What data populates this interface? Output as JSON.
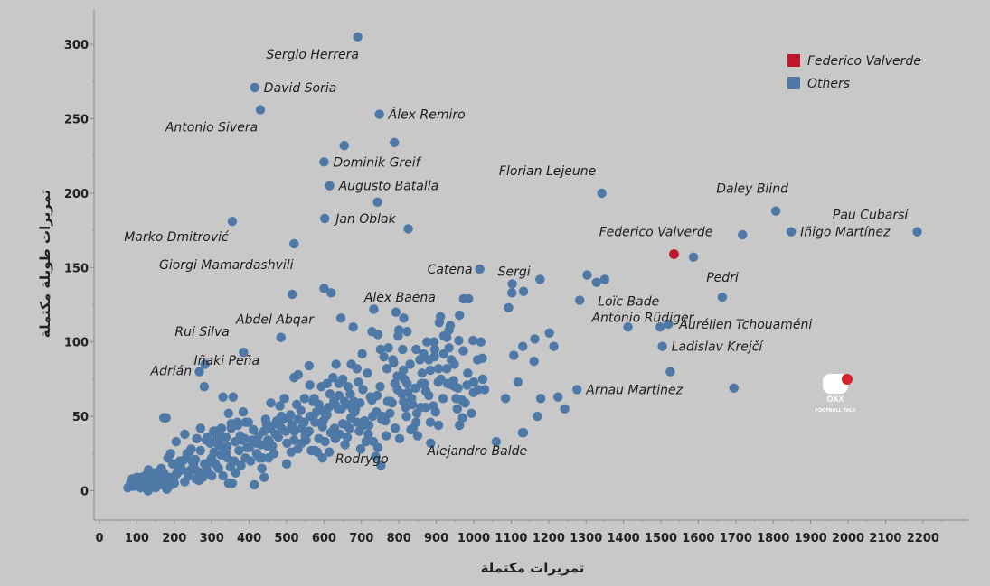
{
  "chart_data": {
    "type": "scatter",
    "xlabel": "تمريرات مكتملة",
    "ylabel": "تمريرات طويلة مكتملة",
    "xlim": [
      0,
      2300
    ],
    "ylim": [
      -20,
      325
    ],
    "xticks": [
      0,
      100,
      200,
      300,
      400,
      500,
      600,
      700,
      800,
      900,
      1000,
      1100,
      1200,
      1300,
      1400,
      1500,
      1600,
      1700,
      1800,
      1900,
      2000,
      2100,
      2200
    ],
    "yticks": [
      0,
      50,
      100,
      150,
      200,
      250,
      300
    ],
    "grid": false,
    "legend_position": "top-right",
    "legend": [
      {
        "name": "Federico Valverde",
        "color": "#c0172d"
      },
      {
        "name": "Others",
        "color": "#4e79a7"
      }
    ],
    "colors": {
      "highlight": "#c0172d",
      "others": "#4e79a7"
    },
    "highlight": [
      {
        "name": "Federico Valverde",
        "x": 1535,
        "y": 159
      }
    ],
    "labeled_points": [
      {
        "name": "Sergio Herrera",
        "x": 690,
        "y": 305
      },
      {
        "name": "David Soria",
        "x": 415,
        "y": 271
      },
      {
        "name": "Antonio Sivera",
        "x": 430,
        "y": 256
      },
      {
        "name": "Álex Remiro",
        "x": 748,
        "y": 253
      },
      {
        "name": "Dominik Greif",
        "x": 600,
        "y": 221
      },
      {
        "name": "Augusto Batalla",
        "x": 615,
        "y": 205
      },
      {
        "name": "Jan Oblak",
        "x": 602,
        "y": 183
      },
      {
        "name": "Marko Dmitrović",
        "x": 355,
        "y": 181
      },
      {
        "name": "Giorgi Mamardashvili",
        "x": 520,
        "y": 166
      },
      {
        "name": "Florian Lejeune",
        "x": 1342,
        "y": 200
      },
      {
        "name": "Daley Blind",
        "x": 1807,
        "y": 188
      },
      {
        "name": "Pau Cubarsí",
        "x": 2185,
        "y": 174
      },
      {
        "name": "Iñigo Martínez",
        "x": 1848,
        "y": 174
      },
      {
        "name": "Pedri",
        "x": 1587,
        "y": 157
      },
      {
        "name": "Antonio Rüdiger",
        "x": 1664,
        "y": 130
      },
      {
        "name": "Catena",
        "x": 1016,
        "y": 149
      },
      {
        "name": "Sergi",
        "x": 1103,
        "y": 139
      },
      {
        "name": "Loïc Bade",
        "x": 1283,
        "y": 128
      },
      {
        "name": "Alex Baena",
        "x": 973,
        "y": 129
      },
      {
        "name": "Abdel Abqar",
        "x": 645,
        "y": 116
      },
      {
        "name": "Aurélien Tchouaméni",
        "x": 1520,
        "y": 112
      },
      {
        "name": "Ladislav Krejčí",
        "x": 1504,
        "y": 97
      },
      {
        "name": "Rui Silva",
        "x": 385,
        "y": 93
      },
      {
        "name": "Iñaki Peña",
        "x": 485,
        "y": 103
      },
      {
        "name": "Adrián",
        "x": 267,
        "y": 80
      },
      {
        "name": "Arnau Martinez",
        "x": 1276,
        "y": 68
      },
      {
        "name": "Alejandro Balde",
        "x": 1130,
        "y": 39
      },
      {
        "name": "Rodrygo",
        "x": 885,
        "y": 32
      }
    ],
    "others": [
      [
        654,
        232
      ],
      [
        788,
        234
      ],
      [
        743,
        194
      ],
      [
        825,
        176
      ],
      [
        515,
        132
      ],
      [
        600,
        136
      ],
      [
        619,
        133
      ],
      [
        986,
        129
      ],
      [
        1102,
        133
      ],
      [
        1133,
        134
      ],
      [
        1177,
        142
      ],
      [
        1303,
        145
      ],
      [
        1328,
        140
      ],
      [
        1350,
        142
      ],
      [
        1412,
        110
      ],
      [
        1498,
        110
      ],
      [
        1525,
        80
      ],
      [
        1695,
        69
      ],
      [
        1718,
        172
      ],
      [
        733,
        122
      ],
      [
        678,
        110
      ],
      [
        792,
        120
      ],
      [
        813,
        116
      ],
      [
        911,
        117
      ],
      [
        937,
        111
      ],
      [
        962,
        118
      ],
      [
        1093,
        123
      ],
      [
        1019,
        100
      ],
      [
        1023,
        89
      ],
      [
        1131,
        97
      ],
      [
        1163,
        102
      ],
      [
        1202,
        106
      ],
      [
        1214,
        97
      ],
      [
        1107,
        91
      ],
      [
        1161,
        87
      ],
      [
        1179,
        62
      ],
      [
        1225,
        63
      ],
      [
        1243,
        55
      ],
      [
        1170,
        50
      ],
      [
        1133,
        39
      ],
      [
        1085,
        62
      ],
      [
        1118,
        73
      ],
      [
        1000,
        73
      ],
      [
        1024,
        75
      ],
      [
        1029,
        68
      ],
      [
        999,
        66
      ],
      [
        977,
        59
      ],
      [
        953,
        62
      ],
      [
        930,
        72
      ],
      [
        905,
        73
      ],
      [
        895,
        90
      ],
      [
        875,
        100
      ],
      [
        866,
        92
      ],
      [
        846,
        95
      ],
      [
        822,
        107
      ],
      [
        810,
        95
      ],
      [
        798,
        104
      ],
      [
        830,
        85
      ],
      [
        815,
        75
      ],
      [
        789,
        72
      ],
      [
        768,
        82
      ],
      [
        751,
        95
      ],
      [
        744,
        105
      ],
      [
        728,
        107
      ],
      [
        702,
        92
      ],
      [
        688,
        82
      ],
      [
        673,
        85
      ],
      [
        664,
        70
      ],
      [
        655,
        60
      ],
      [
        640,
        72
      ],
      [
        626,
        60
      ],
      [
        612,
        56
      ],
      [
        608,
        72
      ],
      [
        593,
        70
      ],
      [
        580,
        53
      ],
      [
        571,
        60
      ],
      [
        563,
        50
      ],
      [
        560,
        40
      ],
      [
        550,
        37
      ],
      [
        540,
        32
      ],
      [
        531,
        48
      ],
      [
        521,
        40
      ],
      [
        510,
        51
      ],
      [
        498,
        40
      ],
      [
        486,
        50
      ],
      [
        470,
        45
      ],
      [
        458,
        42
      ],
      [
        449,
        30
      ],
      [
        436,
        22
      ],
      [
        425,
        37
      ],
      [
        411,
        41
      ],
      [
        401,
        29
      ],
      [
        388,
        35
      ],
      [
        373,
        27
      ],
      [
        360,
        20
      ],
      [
        352,
        42
      ],
      [
        341,
        30
      ],
      [
        325,
        24
      ],
      [
        312,
        40
      ],
      [
        300,
        22
      ],
      [
        292,
        12
      ],
      [
        281,
        18
      ],
      [
        270,
        27
      ],
      [
        258,
        8
      ],
      [
        247,
        20
      ],
      [
        232,
        22
      ],
      [
        220,
        14
      ],
      [
        205,
        11
      ],
      [
        196,
        18
      ],
      [
        183,
        22
      ],
      [
        175,
        10
      ],
      [
        165,
        15
      ],
      [
        158,
        7
      ],
      [
        148,
        12
      ],
      [
        138,
        8
      ],
      [
        126,
        11
      ],
      [
        115,
        5
      ],
      [
        104,
        6
      ],
      [
        92,
        3
      ],
      [
        83,
        5
      ],
      [
        76,
        2
      ],
      [
        88,
        8
      ],
      [
        99,
        4
      ],
      [
        112,
        9
      ],
      [
        122,
        3
      ],
      [
        131,
        14
      ],
      [
        142,
        5
      ],
      [
        152,
        10
      ],
      [
        162,
        4
      ],
      [
        172,
        12
      ],
      [
        186,
        3
      ],
      [
        198,
        8
      ],
      [
        208,
        12
      ],
      [
        218,
        15
      ],
      [
        228,
        6
      ],
      [
        238,
        10
      ],
      [
        252,
        17
      ],
      [
        262,
        13
      ],
      [
        276,
        9
      ],
      [
        286,
        16
      ],
      [
        296,
        20
      ],
      [
        306,
        26
      ],
      [
        318,
        31
      ],
      [
        330,
        36
      ],
      [
        338,
        26
      ],
      [
        350,
        16
      ],
      [
        363,
        33
      ],
      [
        376,
        37
      ],
      [
        391,
        46
      ],
      [
        404,
        20
      ],
      [
        420,
        25
      ],
      [
        432,
        31
      ],
      [
        444,
        48
      ],
      [
        454,
        33
      ],
      [
        466,
        25
      ],
      [
        478,
        36
      ],
      [
        490,
        48
      ],
      [
        501,
        32
      ],
      [
        514,
        44
      ],
      [
        527,
        58
      ],
      [
        538,
        54
      ],
      [
        547,
        46
      ],
      [
        556,
        39
      ],
      [
        566,
        27
      ],
      [
        576,
        46
      ],
      [
        586,
        35
      ],
      [
        596,
        43
      ],
      [
        604,
        50
      ],
      [
        616,
        65
      ],
      [
        624,
        76
      ],
      [
        632,
        85
      ],
      [
        646,
        55
      ],
      [
        660,
        44
      ],
      [
        672,
        49
      ],
      [
        684,
        55
      ],
      [
        696,
        59
      ],
      [
        708,
        47
      ],
      [
        720,
        44
      ],
      [
        732,
        33
      ],
      [
        744,
        29
      ],
      [
        756,
        50
      ],
      [
        770,
        60
      ],
      [
        782,
        59
      ],
      [
        796,
        68
      ],
      [
        806,
        77
      ],
      [
        818,
        56
      ],
      [
        834,
        62
      ],
      [
        846,
        46
      ],
      [
        858,
        56
      ],
      [
        872,
        56
      ],
      [
        884,
        46
      ],
      [
        898,
        53
      ],
      [
        912,
        75
      ],
      [
        928,
        82
      ],
      [
        942,
        71
      ],
      [
        956,
        55
      ],
      [
        968,
        61
      ],
      [
        982,
        71
      ],
      [
        994,
        52
      ],
      [
        1010,
        88
      ],
      [
        1060,
        33
      ],
      [
        270,
        42
      ],
      [
        282,
        85
      ],
      [
        330,
        63
      ],
      [
        345,
        52
      ],
      [
        357,
        63
      ],
      [
        370,
        44
      ],
      [
        384,
        53
      ],
      [
        398,
        46
      ],
      [
        280,
        70
      ],
      [
        305,
        40
      ],
      [
        318,
        15
      ],
      [
        330,
        10
      ],
      [
        345,
        5
      ],
      [
        228,
        38
      ],
      [
        245,
        28
      ],
      [
        190,
        25
      ],
      [
        178,
        49
      ],
      [
        172,
        49
      ],
      [
        205,
        33
      ],
      [
        215,
        20
      ],
      [
        260,
        35
      ],
      [
        240,
        26
      ],
      [
        285,
        34
      ],
      [
        296,
        32
      ],
      [
        310,
        18
      ],
      [
        325,
        30
      ],
      [
        342,
        22
      ],
      [
        355,
        5
      ],
      [
        364,
        12
      ],
      [
        378,
        17
      ],
      [
        390,
        22
      ],
      [
        414,
        4
      ],
      [
        428,
        22
      ],
      [
        440,
        9
      ],
      [
        452,
        22
      ],
      [
        462,
        30
      ],
      [
        474,
        47
      ],
      [
        486,
        42
      ],
      [
        500,
        18
      ],
      [
        512,
        26
      ],
      [
        520,
        76
      ],
      [
        531,
        78
      ],
      [
        548,
        62
      ],
      [
        560,
        84
      ],
      [
        571,
        50
      ],
      [
        582,
        26
      ],
      [
        594,
        54
      ],
      [
        603,
        33
      ],
      [
        614,
        26
      ],
      [
        628,
        42
      ],
      [
        638,
        55
      ],
      [
        650,
        75
      ],
      [
        662,
        36
      ],
      [
        676,
        55
      ],
      [
        688,
        46
      ],
      [
        698,
        28
      ],
      [
        712,
        33
      ],
      [
        724,
        63
      ],
      [
        738,
        23
      ],
      [
        752,
        17
      ],
      [
        764,
        47
      ],
      [
        778,
        60
      ],
      [
        790,
        42
      ],
      [
        802,
        35
      ],
      [
        812,
        60
      ],
      [
        822,
        72
      ],
      [
        838,
        42
      ],
      [
        850,
        37
      ],
      [
        862,
        79
      ],
      [
        880,
        88
      ],
      [
        894,
        100
      ],
      [
        906,
        82
      ],
      [
        920,
        92
      ],
      [
        934,
        108
      ],
      [
        948,
        85
      ],
      [
        960,
        101
      ],
      [
        576,
        27
      ],
      [
        596,
        22
      ],
      [
        630,
        35
      ],
      [
        642,
        38
      ],
      [
        656,
        31
      ],
      [
        668,
        42
      ],
      [
        680,
        60
      ],
      [
        692,
        73
      ],
      [
        704,
        68
      ],
      [
        716,
        79
      ],
      [
        728,
        61
      ],
      [
        740,
        53
      ],
      [
        750,
        70
      ],
      [
        760,
        90
      ],
      [
        772,
        96
      ],
      [
        784,
        88
      ],
      [
        796,
        77
      ],
      [
        808,
        65
      ],
      [
        820,
        50
      ],
      [
        832,
        41
      ],
      [
        844,
        69
      ],
      [
        856,
        88
      ],
      [
        868,
        72
      ],
      [
        880,
        64
      ],
      [
        892,
        57
      ],
      [
        906,
        44
      ],
      [
        918,
        62
      ],
      [
        928,
        103
      ],
      [
        940,
        88
      ],
      [
        950,
        70
      ],
      [
        962,
        44
      ],
      [
        970,
        49
      ],
      [
        440,
        40
      ],
      [
        450,
        34
      ],
      [
        520,
        34
      ],
      [
        530,
        28
      ],
      [
        540,
        42
      ],
      [
        552,
        34
      ],
      [
        562,
        71
      ],
      [
        574,
        62
      ],
      [
        586,
        58
      ],
      [
        598,
        47
      ],
      [
        608,
        51
      ],
      [
        618,
        39
      ],
      [
        630,
        58
      ],
      [
        640,
        64
      ],
      [
        650,
        45
      ],
      [
        660,
        58
      ],
      [
        670,
        65
      ],
      [
        682,
        53
      ],
      [
        694,
        40
      ],
      [
        706,
        44
      ],
      [
        718,
        38
      ],
      [
        730,
        50
      ],
      [
        742,
        64
      ],
      [
        754,
        48
      ],
      [
        766,
        37
      ],
      [
        776,
        52
      ],
      [
        786,
        86
      ],
      [
        800,
        108
      ],
      [
        812,
        81
      ],
      [
        824,
        66
      ],
      [
        836,
        58
      ],
      [
        848,
        52
      ],
      [
        860,
        72
      ],
      [
        872,
        67
      ],
      [
        884,
        81
      ],
      [
        896,
        95
      ],
      [
        908,
        113
      ],
      [
        920,
        104
      ],
      [
        934,
        96
      ],
      [
        946,
        74
      ],
      [
        958,
        69
      ],
      [
        972,
        94
      ],
      [
        984,
        79
      ],
      [
        998,
        101
      ],
      [
        1012,
        68
      ],
      [
        100,
        9
      ],
      [
        110,
        2
      ],
      [
        120,
        6
      ],
      [
        130,
        0
      ],
      [
        140,
        4
      ],
      [
        150,
        2
      ],
      [
        160,
        13
      ],
      [
        170,
        6
      ],
      [
        180,
        1
      ],
      [
        190,
        9
      ],
      [
        200,
        5
      ],
      [
        210,
        14
      ],
      [
        222,
        20
      ],
      [
        234,
        25
      ],
      [
        244,
        14
      ],
      [
        256,
        21
      ],
      [
        266,
        7
      ],
      [
        276,
        12
      ],
      [
        288,
        36
      ],
      [
        300,
        10
      ],
      [
        314,
        36
      ],
      [
        326,
        42
      ],
      [
        338,
        36
      ],
      [
        352,
        45
      ],
      [
        368,
        46
      ],
      [
        380,
        34
      ],
      [
        394,
        29
      ],
      [
        408,
        34
      ],
      [
        420,
        32
      ],
      [
        434,
        15
      ],
      [
        446,
        45
      ],
      [
        458,
        59
      ],
      [
        470,
        38
      ],
      [
        482,
        57
      ],
      [
        494,
        62
      ],
      [
        506,
        49
      ]
    ]
  },
  "branding": {
    "logo_text": "FOOTBALL TALK",
    "logo_letters": "OXX"
  }
}
